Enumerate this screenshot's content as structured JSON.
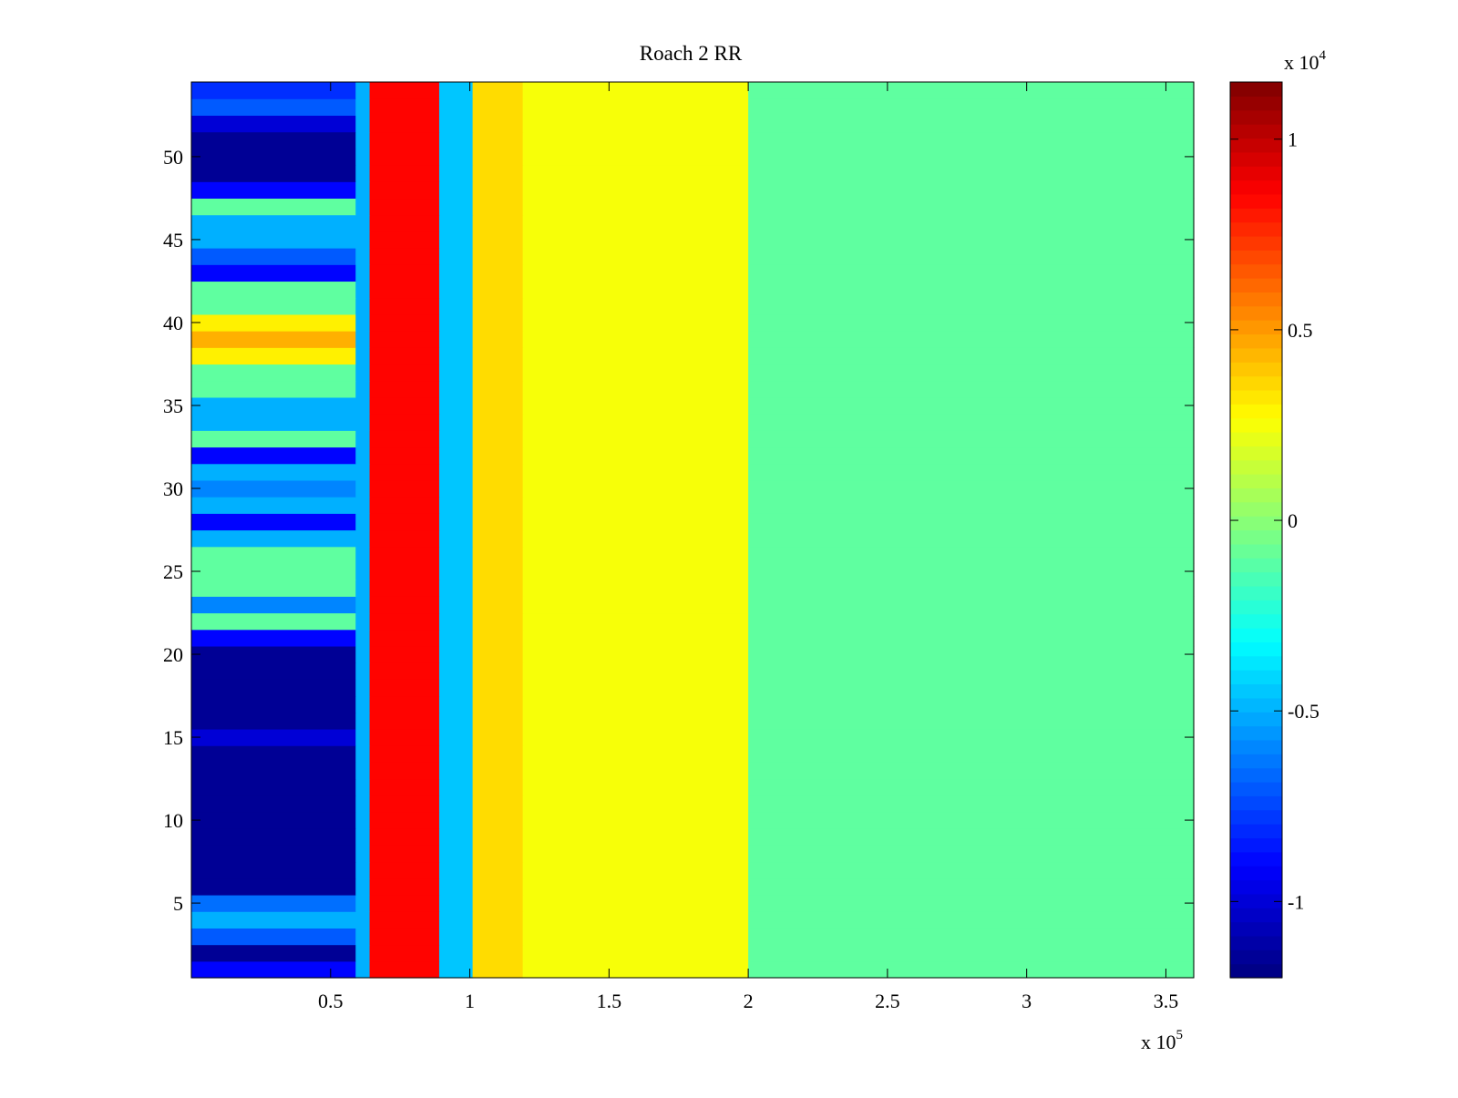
{
  "chart_data": {
    "type": "heatmap",
    "title": "Roach 2 RR",
    "xlabel": "",
    "ylabel": "",
    "x_multiplier_label": "x 10",
    "x_multiplier_exp": "5",
    "xlim": [
      0,
      360000
    ],
    "ylim": [
      0.5,
      54.5
    ],
    "x_ticks": [
      50000,
      100000,
      150000,
      200000,
      250000,
      300000,
      350000
    ],
    "x_tick_labels": [
      "0.5",
      "1",
      "1.5",
      "2",
      "2.5",
      "3",
      "3.5"
    ],
    "y_ticks": [
      5,
      10,
      15,
      20,
      25,
      30,
      35,
      40,
      45,
      50
    ],
    "y_tick_labels": [
      "5",
      "10",
      "15",
      "20",
      "25",
      "30",
      "35",
      "40",
      "45",
      "50"
    ],
    "rows": 54,
    "colorbar": {
      "colormap": "jet",
      "range": [
        -12000,
        11500
      ],
      "ticks": [
        -10000,
        -5000,
        0,
        5000,
        10000
      ],
      "tick_labels": [
        "-1",
        "-0.5",
        "0",
        "0.5",
        "1"
      ],
      "multiplier_label": "x 10",
      "multiplier_exp": "4"
    },
    "grid": false,
    "column_bands": [
      {
        "x_start": 0,
        "x_end": 59000,
        "description": "baseline segment, per-row values listed in first_band_row_values"
      },
      {
        "x_start": 59000,
        "x_end": 64000,
        "value": -5000
      },
      {
        "x_start": 64000,
        "x_end": 89000,
        "value": 8500
      },
      {
        "x_start": 89000,
        "x_end": 101000,
        "value": -4500
      },
      {
        "x_start": 101000,
        "x_end": 119000,
        "value": 3500
      },
      {
        "x_start": 119000,
        "x_end": 200000,
        "value": 2500
      },
      {
        "x_start": 200000,
        "x_end": 360000,
        "value": -1000
      }
    ],
    "first_band_row_values": [
      -9000,
      -11500,
      -7000,
      -5000,
      -6500,
      -11500,
      -11500,
      -11500,
      -11500,
      -11500,
      -11500,
      -11500,
      -11500,
      -11500,
      -10000,
      -11500,
      -11500,
      -11500,
      -11500,
      -11500,
      -9000,
      -1000,
      -6000,
      -1000,
      -1000,
      -1000,
      -5000,
      -9000,
      -5000,
      -6000,
      -5000,
      -9000,
      -1000,
      -5000,
      -5000,
      -1000,
      -1000,
      3000,
      4500,
      3000,
      -1000,
      -1000,
      -9000,
      -7000,
      -5000,
      -5000,
      -1000,
      -9000,
      -11500,
      -11500,
      -11500,
      -10000,
      -7000,
      -8000
    ]
  }
}
